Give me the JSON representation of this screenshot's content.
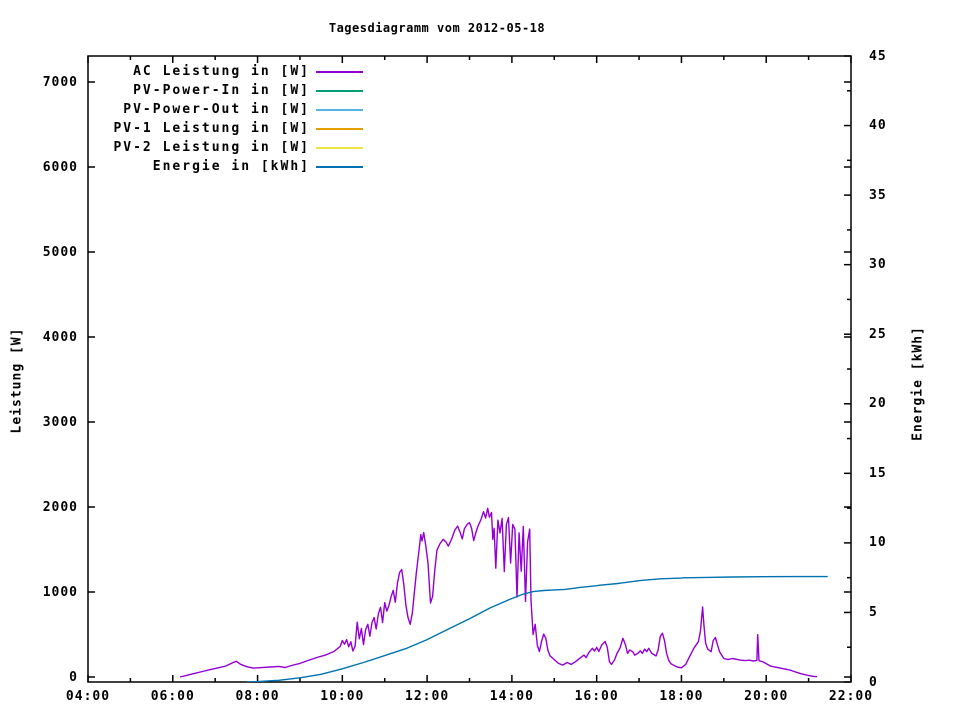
{
  "title": "Tagesdiagramm vom 2012-05-18",
  "axes": {
    "x": {
      "major": [
        {
          "h": 4,
          "label": "04:00"
        },
        {
          "h": 6,
          "label": "06:00"
        },
        {
          "h": 8,
          "label": "08:00"
        },
        {
          "h": 10,
          "label": "10:00"
        },
        {
          "h": 12,
          "label": "12:00"
        },
        {
          "h": 14,
          "label": "14:00"
        },
        {
          "h": 16,
          "label": "16:00"
        },
        {
          "h": 18,
          "label": "18:00"
        },
        {
          "h": 20,
          "label": "20:00"
        },
        {
          "h": 22,
          "label": "22:00"
        }
      ],
      "minor_hours": [
        5,
        7,
        9,
        11,
        13,
        15,
        17,
        19,
        21
      ],
      "range": [
        4,
        22
      ]
    },
    "y_left": {
      "label": "Leistung [W]",
      "ticks": [
        0,
        1000,
        2000,
        3000,
        4000,
        5000,
        6000,
        7000
      ],
      "range": [
        0,
        7000
      ]
    },
    "y_right": {
      "label": "Energie [kWh]",
      "ticks": [
        0,
        5,
        10,
        15,
        20,
        25,
        30,
        35,
        40,
        45
      ],
      "minor_step": 2.5,
      "range": [
        0,
        45
      ]
    }
  },
  "chart_data": {
    "type": "line",
    "title": "Tagesdiagramm vom 2012-05-18",
    "x_unit": "time of day (hours)",
    "x_range_hours": [
      4,
      22
    ],
    "y_left_label": "Leistung [W]",
    "y_left_range": [
      0,
      7000
    ],
    "y_right_label": "Energie [kWh]",
    "y_right_range": [
      0,
      45
    ],
    "legend_position": "top-left-inside",
    "grid": false,
    "series": [
      {
        "name": "AC Leistung in [W]",
        "color": "#9400d3",
        "axis": "left",
        "points": [
          [
            6.17,
            0
          ],
          [
            6.3,
            15
          ],
          [
            6.5,
            40
          ],
          [
            6.7,
            65
          ],
          [
            6.9,
            90
          ],
          [
            7.1,
            110
          ],
          [
            7.25,
            130
          ],
          [
            7.4,
            165
          ],
          [
            7.5,
            185
          ],
          [
            7.6,
            150
          ],
          [
            7.75,
            120
          ],
          [
            7.9,
            105
          ],
          [
            8.1,
            110
          ],
          [
            8.3,
            118
          ],
          [
            8.5,
            125
          ],
          [
            8.65,
            112
          ],
          [
            8.8,
            135
          ],
          [
            9.0,
            160
          ],
          [
            9.2,
            195
          ],
          [
            9.4,
            230
          ],
          [
            9.6,
            258
          ],
          [
            9.8,
            300
          ],
          [
            9.95,
            360
          ],
          [
            10.0,
            430
          ],
          [
            10.05,
            385
          ],
          [
            10.1,
            440
          ],
          [
            10.15,
            355
          ],
          [
            10.2,
            415
          ],
          [
            10.25,
            305
          ],
          [
            10.3,
            365
          ],
          [
            10.35,
            645
          ],
          [
            10.4,
            450
          ],
          [
            10.45,
            570
          ],
          [
            10.5,
            380
          ],
          [
            10.55,
            555
          ],
          [
            10.6,
            620
          ],
          [
            10.65,
            480
          ],
          [
            10.7,
            640
          ],
          [
            10.75,
            700
          ],
          [
            10.8,
            565
          ],
          [
            10.85,
            745
          ],
          [
            10.9,
            820
          ],
          [
            10.95,
            640
          ],
          [
            11.0,
            875
          ],
          [
            11.05,
            775
          ],
          [
            11.1,
            845
          ],
          [
            11.15,
            945
          ],
          [
            11.2,
            1020
          ],
          [
            11.25,
            880
          ],
          [
            11.3,
            1100
          ],
          [
            11.35,
            1230
          ],
          [
            11.4,
            1265
          ],
          [
            11.45,
            1090
          ],
          [
            11.5,
            845
          ],
          [
            11.55,
            700
          ],
          [
            11.6,
            620
          ],
          [
            11.65,
            750
          ],
          [
            11.7,
            1000
          ],
          [
            11.75,
            1245
          ],
          [
            11.8,
            1450
          ],
          [
            11.85,
            1675
          ],
          [
            11.88,
            1600
          ],
          [
            11.92,
            1700
          ],
          [
            11.97,
            1545
          ],
          [
            12.02,
            1340
          ],
          [
            12.08,
            870
          ],
          [
            12.13,
            950
          ],
          [
            12.18,
            1245
          ],
          [
            12.23,
            1490
          ],
          [
            12.3,
            1565
          ],
          [
            12.38,
            1620
          ],
          [
            12.45,
            1585
          ],
          [
            12.5,
            1540
          ],
          [
            12.58,
            1625
          ],
          [
            12.65,
            1725
          ],
          [
            12.72,
            1775
          ],
          [
            12.78,
            1700
          ],
          [
            12.83,
            1625
          ],
          [
            12.88,
            1745
          ],
          [
            12.95,
            1800
          ],
          [
            13.0,
            1815
          ],
          [
            13.05,
            1750
          ],
          [
            13.1,
            1605
          ],
          [
            13.15,
            1700
          ],
          [
            13.2,
            1775
          ],
          [
            13.27,
            1850
          ],
          [
            13.33,
            1945
          ],
          [
            13.38,
            1870
          ],
          [
            13.43,
            1985
          ],
          [
            13.47,
            1880
          ],
          [
            13.52,
            1935
          ],
          [
            13.55,
            1620
          ],
          [
            13.58,
            1750
          ],
          [
            13.62,
            1280
          ],
          [
            13.67,
            1845
          ],
          [
            13.72,
            1695
          ],
          [
            13.77,
            1865
          ],
          [
            13.82,
            1240
          ],
          [
            13.87,
            1795
          ],
          [
            13.92,
            1875
          ],
          [
            13.97,
            1340
          ],
          [
            14.02,
            1795
          ],
          [
            14.07,
            1740
          ],
          [
            14.12,
            940
          ],
          [
            14.17,
            1695
          ],
          [
            14.22,
            1245
          ],
          [
            14.27,
            1770
          ],
          [
            14.32,
            890
          ],
          [
            14.37,
            1590
          ],
          [
            14.42,
            1740
          ],
          [
            14.45,
            900
          ],
          [
            14.5,
            500
          ],
          [
            14.55,
            620
          ],
          [
            14.6,
            375
          ],
          [
            14.65,
            300
          ],
          [
            14.7,
            420
          ],
          [
            14.75,
            505
          ],
          [
            14.8,
            455
          ],
          [
            14.85,
            315
          ],
          [
            14.9,
            250
          ],
          [
            15.0,
            205
          ],
          [
            15.1,
            160
          ],
          [
            15.2,
            140
          ],
          [
            15.3,
            170
          ],
          [
            15.4,
            148
          ],
          [
            15.5,
            180
          ],
          [
            15.6,
            220
          ],
          [
            15.7,
            258
          ],
          [
            15.75,
            228
          ],
          [
            15.82,
            290
          ],
          [
            15.9,
            338
          ],
          [
            15.95,
            305
          ],
          [
            16.0,
            348
          ],
          [
            16.05,
            300
          ],
          [
            16.12,
            378
          ],
          [
            16.2,
            418
          ],
          [
            16.25,
            348
          ],
          [
            16.3,
            180
          ],
          [
            16.35,
            148
          ],
          [
            16.42,
            200
          ],
          [
            16.48,
            278
          ],
          [
            16.55,
            340
          ],
          [
            16.62,
            455
          ],
          [
            16.68,
            378
          ],
          [
            16.73,
            278
          ],
          [
            16.78,
            318
          ],
          [
            16.85,
            298
          ],
          [
            16.9,
            258
          ],
          [
            16.97,
            278
          ],
          [
            17.03,
            308
          ],
          [
            17.08,
            278
          ],
          [
            17.13,
            328
          ],
          [
            17.18,
            298
          ],
          [
            17.23,
            338
          ],
          [
            17.3,
            278
          ],
          [
            17.4,
            248
          ],
          [
            17.45,
            318
          ],
          [
            17.5,
            478
          ],
          [
            17.55,
            515
          ],
          [
            17.6,
            428
          ],
          [
            17.65,
            278
          ],
          [
            17.7,
            198
          ],
          [
            17.75,
            158
          ],
          [
            17.82,
            138
          ],
          [
            17.9,
            118
          ],
          [
            18.0,
            108
          ],
          [
            18.1,
            148
          ],
          [
            18.2,
            248
          ],
          [
            18.3,
            345
          ],
          [
            18.4,
            415
          ],
          [
            18.45,
            545
          ],
          [
            18.5,
            825
          ],
          [
            18.53,
            615
          ],
          [
            18.57,
            398
          ],
          [
            18.62,
            328
          ],
          [
            18.7,
            298
          ],
          [
            18.75,
            428
          ],
          [
            18.8,
            465
          ],
          [
            18.85,
            378
          ],
          [
            18.9,
            298
          ],
          [
            19.0,
            218
          ],
          [
            19.1,
            205
          ],
          [
            19.2,
            218
          ],
          [
            19.3,
            208
          ],
          [
            19.4,
            198
          ],
          [
            19.5,
            193
          ],
          [
            19.6,
            198
          ],
          [
            19.7,
            188
          ],
          [
            19.78,
            195
          ],
          [
            19.8,
            498
          ],
          [
            19.83,
            192
          ],
          [
            19.9,
            182
          ],
          [
            20.0,
            158
          ],
          [
            20.1,
            128
          ],
          [
            20.2,
            118
          ],
          [
            20.3,
            108
          ],
          [
            20.4,
            98
          ],
          [
            20.5,
            88
          ],
          [
            20.6,
            75
          ],
          [
            20.7,
            58
          ],
          [
            20.8,
            42
          ],
          [
            20.9,
            28
          ],
          [
            21.0,
            18
          ],
          [
            21.1,
            8
          ],
          [
            21.2,
            3
          ]
        ]
      },
      {
        "name": "PV-Power-In in [W]",
        "color": "#009e73",
        "axis": "left",
        "points": []
      },
      {
        "name": "PV-Power-Out in [W]",
        "color": "#56b4e9",
        "axis": "left",
        "points": []
      },
      {
        "name": "PV-1 Leistung in [W]",
        "color": "#e69f00",
        "axis": "left",
        "points": []
      },
      {
        "name": "PV-2 Leistung in [W]",
        "color": "#f0e442",
        "axis": "left",
        "points": []
      },
      {
        "name": "Energie in [kWh]",
        "color": "#0072b2",
        "axis": "right",
        "points": [
          [
            7.75,
            0
          ],
          [
            8.0,
            0.03
          ],
          [
            8.5,
            0.12
          ],
          [
            9.0,
            0.3
          ],
          [
            9.5,
            0.55
          ],
          [
            10.0,
            0.95
          ],
          [
            10.5,
            1.4
          ],
          [
            11.0,
            1.9
          ],
          [
            11.5,
            2.4
          ],
          [
            12.0,
            3.05
          ],
          [
            12.5,
            3.8
          ],
          [
            13.0,
            4.55
          ],
          [
            13.5,
            5.35
          ],
          [
            14.0,
            6.0
          ],
          [
            14.25,
            6.3
          ],
          [
            14.5,
            6.5
          ],
          [
            14.75,
            6.58
          ],
          [
            15.0,
            6.62
          ],
          [
            15.25,
            6.66
          ],
          [
            15.5,
            6.75
          ],
          [
            15.55,
            6.78
          ],
          [
            16.0,
            6.92
          ],
          [
            16.05,
            6.95
          ],
          [
            16.5,
            7.08
          ],
          [
            16.55,
            7.1
          ],
          [
            17.0,
            7.28
          ],
          [
            17.05,
            7.3
          ],
          [
            17.5,
            7.42
          ],
          [
            18.0,
            7.47
          ],
          [
            18.05,
            7.49
          ],
          [
            18.6,
            7.52
          ],
          [
            19.2,
            7.55
          ],
          [
            19.9,
            7.57
          ],
          [
            20.6,
            7.58
          ],
          [
            21.45,
            7.58
          ]
        ]
      }
    ]
  }
}
